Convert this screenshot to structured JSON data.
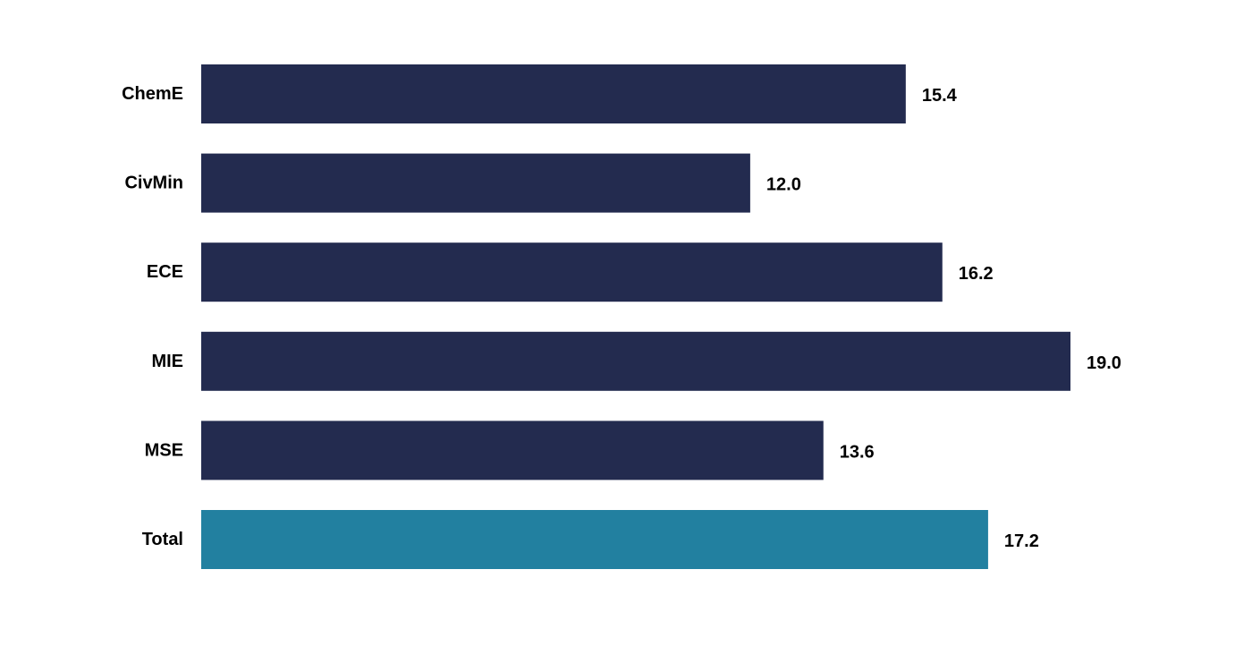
{
  "chart_data": {
    "type": "bar",
    "orientation": "horizontal",
    "categories": [
      "ChemE",
      "CivMin",
      "ECE",
      "MIE",
      "MSE",
      "Total"
    ],
    "values": [
      15.4,
      12.0,
      16.2,
      19.0,
      13.6,
      17.2
    ],
    "value_labels": [
      "15.4",
      "12.0",
      "16.2",
      "19.0",
      "13.6",
      "17.2"
    ],
    "xlim": [
      0,
      19.0
    ],
    "grid": false,
    "colors": {
      "default_bar": "#232b4f",
      "highlight_bar": "#2280a0",
      "text": "#000000"
    },
    "highlight_categories": [
      "Total"
    ]
  }
}
